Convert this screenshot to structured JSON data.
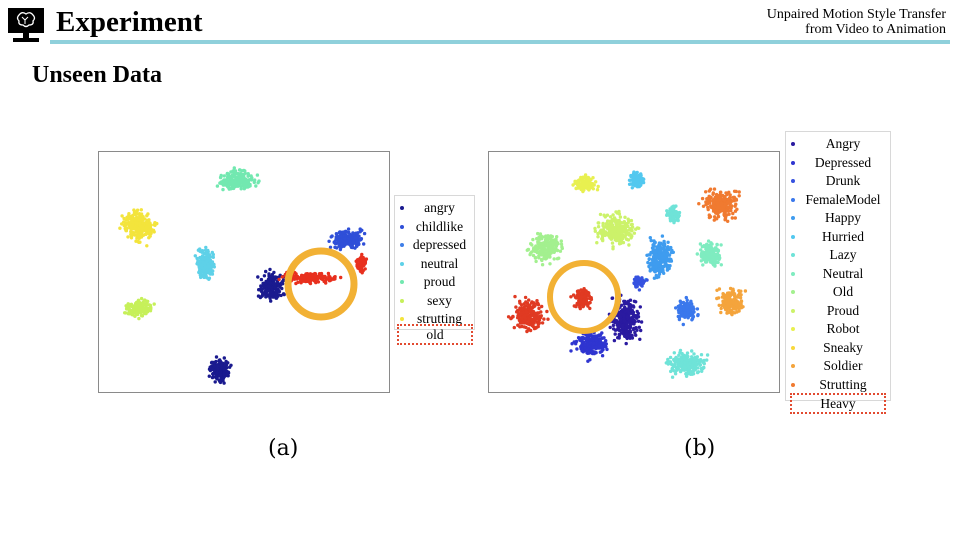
{
  "header": {
    "slide_title": "Experiment",
    "paper_title_line1": "Unpaired Motion Style Transfer",
    "paper_title_line2": "from Video to Animation"
  },
  "section_heading": "Unseen Data",
  "colors": {
    "header_rule": "#8fd0db",
    "highlight_circle": "#f2b134",
    "highlight_box": "#e24a30"
  },
  "figures": [
    {
      "caption": "(a)",
      "legend": [
        "angry",
        "childlike",
        "depressed",
        "neutral",
        "proud",
        "sexy",
        "strutting"
      ],
      "highlighted_label": "old",
      "highlight_circle_icon": "orange-circle"
    },
    {
      "caption": "(b)",
      "legend": [
        "Angry",
        "Depressed",
        "Drunk",
        "FemaleModel",
        "Happy",
        "Hurried",
        "Lazy",
        "Neutral",
        "Old",
        "Proud",
        "Robot",
        "Sneaky",
        "Soldier",
        "Strutting"
      ],
      "highlighted_label": "Heavy",
      "highlight_circle_icon": "orange-circle"
    }
  ],
  "chart_data": [
    {
      "type": "scatter",
      "series": [
        {
          "name": "angry",
          "color": "#1a1a8f"
        },
        {
          "name": "childlike",
          "color": "#2f4fd8"
        },
        {
          "name": "depressed",
          "color": "#3f7fe8"
        },
        {
          "name": "neutral",
          "color": "#5ed1e8"
        },
        {
          "name": "proud",
          "color": "#72e8b0"
        },
        {
          "name": "sexy",
          "color": "#c6f05a"
        },
        {
          "name": "strutting",
          "color": "#f3e43c"
        },
        {
          "name": "old",
          "color": "#e8301e"
        }
      ]
    },
    {
      "type": "scatter",
      "series": [
        {
          "name": "Angry",
          "color": "#2a1aa0"
        },
        {
          "name": "Depressed",
          "color": "#2f35d0"
        },
        {
          "name": "Drunk",
          "color": "#3652e0"
        },
        {
          "name": "FemaleModel",
          "color": "#3b78ec"
        },
        {
          "name": "Happy",
          "color": "#3f9cef"
        },
        {
          "name": "Hurried",
          "color": "#52c8ef"
        },
        {
          "name": "Lazy",
          "color": "#6fe3d8"
        },
        {
          "name": "Neutral",
          "color": "#7fecc0"
        },
        {
          "name": "Old",
          "color": "#a3f08f"
        },
        {
          "name": "Proud",
          "color": "#ccf26a"
        },
        {
          "name": "Robot",
          "color": "#e8f050"
        },
        {
          "name": "Sneaky",
          "color": "#f8d83c"
        },
        {
          "name": "Soldier",
          "color": "#f4a43c"
        },
        {
          "name": "Strutting",
          "color": "#f07a30"
        },
        {
          "name": "Heavy",
          "color": "#e03a22"
        }
      ]
    }
  ]
}
